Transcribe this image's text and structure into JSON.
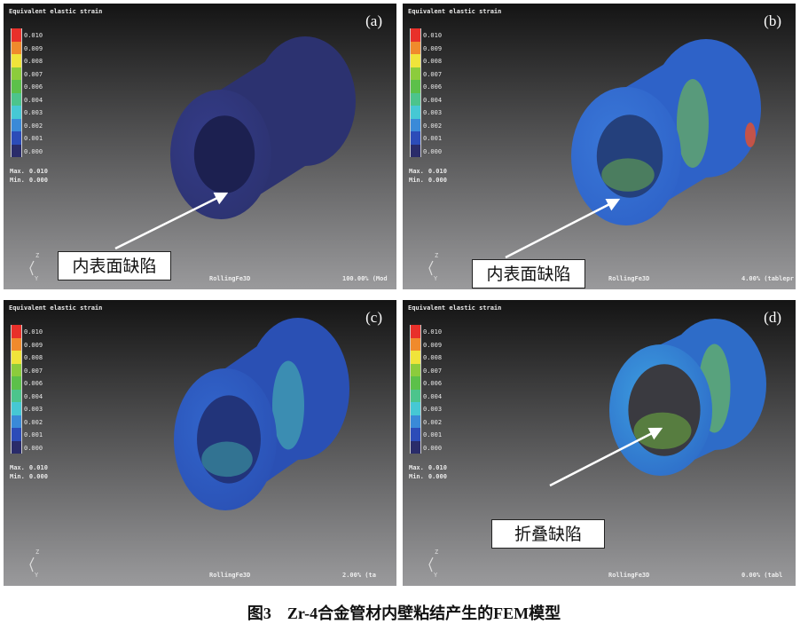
{
  "figure": {
    "caption": "图3　Zr-4合金管材内壁粘结产生的FEM模型",
    "legend": {
      "title": "Equivalent elastic strain",
      "values": [
        "0.010",
        "0.009",
        "0.008",
        "0.007",
        "0.006",
        "0.004",
        "0.003",
        "0.002",
        "0.001",
        "0.000"
      ],
      "colors": [
        "#e8302a",
        "#f08a2c",
        "#f0e43a",
        "#8ccc3c",
        "#5cc04a",
        "#4cc48c",
        "#46c8d4",
        "#3a8ad8",
        "#2c4cb8",
        "#2a2c6a"
      ],
      "max_label": "Max.",
      "max_value": "0.010",
      "min_label": "Min.",
      "min_value": "0.000"
    },
    "axis_triad": "Z Y",
    "panels": [
      {
        "label": "(a)",
        "footer": "RollingFe3D",
        "status": "100.00% (Mod",
        "annotation": "内表面缺陷",
        "colors": {
          "body": "#2c3270",
          "face": "#343c88",
          "hole": "#1c2050",
          "accent": "#343c88"
        }
      },
      {
        "label": "(b)",
        "footer": "RollingFe3D",
        "status": "4.00% (tablepr",
        "annotation": "内表面缺陷",
        "colors": {
          "body": "#2e62c8",
          "face": "#3a78d8",
          "hole": "#24407c",
          "accent": "#7cc83c"
        }
      },
      {
        "label": "(c)",
        "footer": "RollingFe3D",
        "status": "2.00% (ta",
        "annotation": "",
        "colors": {
          "body": "#2a50b4",
          "face": "#3266cc",
          "hole": "#22347a",
          "accent": "#48c0b0"
        }
      },
      {
        "label": "(d)",
        "footer": "RollingFe3D",
        "status": "0.00% (tabl",
        "annotation": "折叠缺陷",
        "colors": {
          "body": "#2e6cc8",
          "face": "#3c9ee0",
          "hole": "#3a3a40",
          "accent": "#7cd040"
        }
      }
    ]
  }
}
